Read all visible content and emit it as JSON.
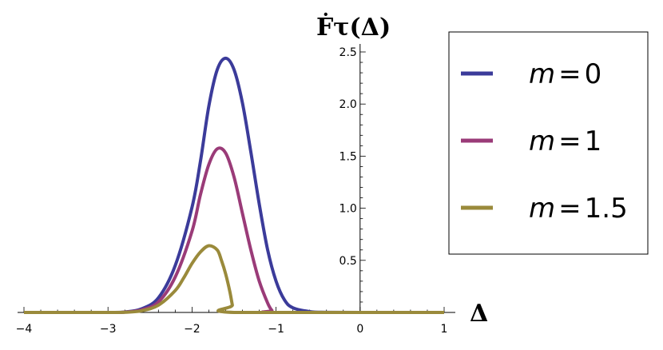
{
  "chart_data": {
    "type": "line",
    "xlabel": "Δ",
    "ylabel": "Ḟτ(Δ)",
    "xlim": [
      -4,
      1
    ],
    "ylim": [
      0,
      2.5
    ],
    "x_ticks": [
      "−4",
      "−3",
      "−2",
      "−1",
      "0",
      "1"
    ],
    "x_tick_values": [
      -4,
      -3,
      -2,
      -1,
      0,
      1
    ],
    "y_ticks": [
      "0.5",
      "1.0",
      "1.5",
      "2.0",
      "2.5"
    ],
    "y_tick_values": [
      0.5,
      1.0,
      1.5,
      2.0,
      2.5
    ],
    "grid": false,
    "legend_position": "right",
    "series": [
      {
        "name": "m = 0",
        "legend_var": "m",
        "legend_value": "0",
        "color": "#3b3b9a",
        "x": [
          -4.0,
          -3.0,
          -2.8,
          -2.6,
          -2.4,
          -2.2,
          -2.0,
          -1.9,
          -1.8,
          -1.7,
          -1.6,
          -1.5,
          -1.4,
          -1.3,
          -1.2,
          -1.1,
          -1.0,
          -0.9,
          -0.8,
          -0.6,
          -0.4,
          0.0,
          1.0
        ],
        "y": [
          0.0,
          0.0,
          0.004,
          0.035,
          0.14,
          0.45,
          1.01,
          1.45,
          1.98,
          2.33,
          2.44,
          2.33,
          2.01,
          1.54,
          1.04,
          0.6,
          0.3,
          0.12,
          0.045,
          0.008,
          0.001,
          0.0,
          0.0
        ]
      },
      {
        "name": "m = 1",
        "legend_var": "m",
        "legend_value": "1",
        "color": "#9a3b78",
        "x": [
          -4.0,
          -3.0,
          -2.8,
          -2.6,
          -2.4,
          -2.2,
          -2.0,
          -1.9,
          -1.8,
          -1.7,
          -1.6,
          -1.5,
          -1.4,
          -1.3,
          -1.2,
          -1.1,
          -1.05,
          -1.0,
          1.0
        ],
        "y": [
          0.0,
          0.0,
          0.003,
          0.025,
          0.1,
          0.34,
          0.78,
          1.13,
          1.42,
          1.57,
          1.53,
          1.3,
          0.95,
          0.6,
          0.3,
          0.09,
          0.02,
          0.0,
          0.0
        ]
      },
      {
        "name": "m = 1.5",
        "legend_var": "m",
        "legend_value": "1.5",
        "color": "#9a8a3b",
        "x": [
          -4.0,
          -3.0,
          -2.8,
          -2.6,
          -2.4,
          -2.2,
          -2.1,
          -2.0,
          -1.9,
          -1.8,
          -1.7,
          -1.65,
          -1.6,
          -1.55,
          -1.52,
          -1.5,
          1.0
        ],
        "y": [
          0.0,
          0.0,
          0.002,
          0.016,
          0.07,
          0.21,
          0.33,
          0.47,
          0.58,
          0.64,
          0.6,
          0.5,
          0.37,
          0.2,
          0.07,
          0.0,
          0.0
        ]
      }
    ]
  }
}
